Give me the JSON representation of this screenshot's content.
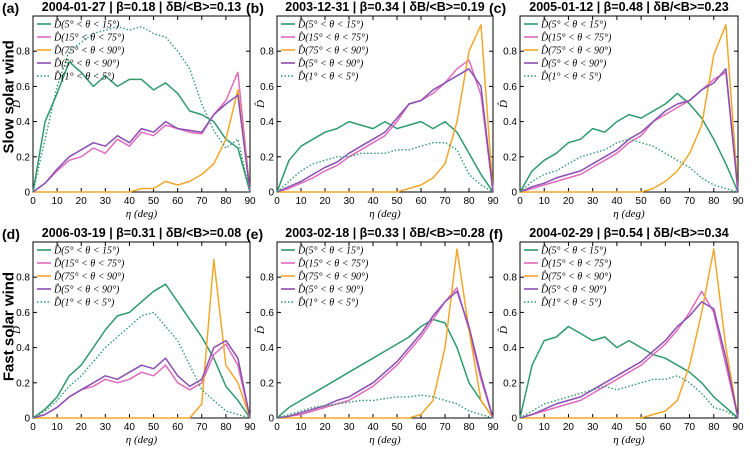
{
  "row_labels": [
    "Slow solar wind",
    "Fast solar wind"
  ],
  "colors": {
    "green": "#2e9a6e",
    "pink": "#e06bbd",
    "orange": "#f2a72a",
    "purple": "#8a4fb3",
    "green_dotted": "#2e9a6e"
  },
  "chart_data": [
    {
      "panel": "(a)",
      "type": "line",
      "title": "2004-01-27 | β=0.18 | δB/<B>=0.13",
      "xlabel": "η (deg)",
      "ylabel": "D̂",
      "xlim": [
        0,
        90
      ],
      "ylim": [
        0,
        1.0
      ],
      "xticks": [
        0,
        10,
        20,
        30,
        40,
        50,
        60,
        70,
        80,
        90
      ],
      "yticks": [
        0,
        0.2,
        0.4,
        0.6,
        0.8
      ],
      "x": [
        0,
        5,
        10,
        15,
        20,
        25,
        30,
        35,
        40,
        45,
        50,
        55,
        60,
        65,
        70,
        75,
        80,
        85,
        90
      ],
      "series": [
        {
          "name": "D̂(5° < θ < 15°)",
          "style": "solid",
          "color": "green",
          "values": [
            0.0,
            0.4,
            0.56,
            0.74,
            0.68,
            0.6,
            0.66,
            0.6,
            0.64,
            0.64,
            0.58,
            0.62,
            0.56,
            0.46,
            0.44,
            0.4,
            0.3,
            0.25,
            0.0
          ]
        },
        {
          "name": "D̂(15° < θ < 75°)",
          "style": "solid",
          "color": "pink",
          "values": [
            0.0,
            0.05,
            0.12,
            0.18,
            0.2,
            0.25,
            0.22,
            0.3,
            0.26,
            0.34,
            0.32,
            0.38,
            0.36,
            0.34,
            0.33,
            0.44,
            0.52,
            0.68,
            0.0
          ]
        },
        {
          "name": "D̂(75° < θ < 90°)",
          "style": "solid",
          "color": "orange",
          "values": [
            0.0,
            0.0,
            0.0,
            0.0,
            0.0,
            0.0,
            0.0,
            0.0,
            0.0,
            0.02,
            0.02,
            0.06,
            0.04,
            0.06,
            0.1,
            0.16,
            0.3,
            0.58,
            0.0
          ]
        },
        {
          "name": "D̂(5° < θ < 90°)",
          "style": "solid",
          "color": "purple",
          "values": [
            0.0,
            0.05,
            0.13,
            0.2,
            0.24,
            0.28,
            0.26,
            0.32,
            0.28,
            0.36,
            0.34,
            0.4,
            0.36,
            0.35,
            0.34,
            0.44,
            0.5,
            0.55,
            0.0
          ]
        },
        {
          "name": "D̂(1° < θ < 5°)",
          "style": "dotted",
          "color": "green_dotted",
          "values": [
            0.0,
            0.3,
            0.6,
            0.8,
            0.85,
            0.9,
            0.92,
            0.94,
            0.92,
            0.94,
            0.9,
            0.88,
            0.8,
            0.7,
            0.5,
            0.35,
            0.25,
            0.3,
            0.0
          ]
        }
      ]
    },
    {
      "panel": "(b)",
      "type": "line",
      "title": "2003-12-31 | β=0.34 | δB/<B>=0.19",
      "xlabel": "η (deg)",
      "ylabel": "D̂",
      "xlim": [
        0,
        90
      ],
      "ylim": [
        0,
        1.0
      ],
      "xticks": [
        0,
        10,
        20,
        30,
        40,
        50,
        60,
        70,
        80,
        90
      ],
      "yticks": [
        0,
        0.2,
        0.4,
        0.6,
        0.8
      ],
      "x": [
        0,
        5,
        10,
        15,
        20,
        25,
        30,
        35,
        40,
        45,
        50,
        55,
        60,
        65,
        70,
        75,
        80,
        85,
        90
      ],
      "series": [
        {
          "name": "D̂(5° < θ < 15°)",
          "style": "solid",
          "color": "green",
          "values": [
            0.0,
            0.18,
            0.26,
            0.3,
            0.34,
            0.36,
            0.4,
            0.38,
            0.36,
            0.4,
            0.36,
            0.38,
            0.4,
            0.36,
            0.4,
            0.34,
            0.22,
            0.1,
            0.0
          ]
        },
        {
          "name": "D̂(15° < θ < 75°)",
          "style": "solid",
          "color": "pink",
          "values": [
            0.0,
            0.02,
            0.05,
            0.08,
            0.12,
            0.15,
            0.2,
            0.24,
            0.28,
            0.32,
            0.4,
            0.5,
            0.52,
            0.56,
            0.62,
            0.7,
            0.75,
            0.55,
            0.0
          ]
        },
        {
          "name": "D̂(75° < θ < 90°)",
          "style": "solid",
          "color": "orange",
          "values": [
            0.0,
            0.0,
            0.0,
            0.0,
            0.0,
            0.0,
            0.0,
            0.0,
            0.0,
            0.0,
            0.0,
            0.02,
            0.04,
            0.08,
            0.16,
            0.4,
            0.8,
            0.95,
            0.0
          ]
        },
        {
          "name": "D̂(5° < θ < 90°)",
          "style": "solid",
          "color": "purple",
          "values": [
            0.0,
            0.03,
            0.06,
            0.1,
            0.14,
            0.17,
            0.22,
            0.26,
            0.3,
            0.34,
            0.42,
            0.5,
            0.52,
            0.58,
            0.62,
            0.66,
            0.7,
            0.6,
            0.0
          ]
        },
        {
          "name": "D̂(1° < θ < 5°)",
          "style": "dotted",
          "color": "green_dotted",
          "values": [
            0.0,
            0.06,
            0.12,
            0.16,
            0.18,
            0.2,
            0.2,
            0.22,
            0.22,
            0.22,
            0.24,
            0.24,
            0.26,
            0.28,
            0.28,
            0.24,
            0.1,
            0.04,
            0.0
          ]
        }
      ]
    },
    {
      "panel": "(c)",
      "type": "line",
      "title": "2005-01-12 | β=0.48 | δB/<B>=0.23",
      "xlabel": "η (deg)",
      "ylabel": "D̂",
      "xlim": [
        0,
        90
      ],
      "ylim": [
        0,
        1.0
      ],
      "xticks": [
        0,
        10,
        20,
        30,
        40,
        50,
        60,
        70,
        80,
        90
      ],
      "yticks": [
        0,
        0.2,
        0.4,
        0.6,
        0.8
      ],
      "x": [
        0,
        5,
        10,
        15,
        20,
        25,
        30,
        35,
        40,
        45,
        50,
        55,
        60,
        65,
        70,
        75,
        80,
        85,
        90
      ],
      "series": [
        {
          "name": "D̂(5° < θ < 15°)",
          "style": "solid",
          "color": "green",
          "values": [
            0.0,
            0.12,
            0.18,
            0.22,
            0.28,
            0.3,
            0.36,
            0.34,
            0.4,
            0.44,
            0.42,
            0.46,
            0.5,
            0.56,
            0.5,
            0.42,
            0.3,
            0.16,
            0.0
          ]
        },
        {
          "name": "D̂(15° < θ < 75°)",
          "style": "solid",
          "color": "pink",
          "values": [
            0.0,
            0.02,
            0.04,
            0.06,
            0.08,
            0.1,
            0.14,
            0.18,
            0.22,
            0.28,
            0.32,
            0.4,
            0.44,
            0.48,
            0.52,
            0.58,
            0.64,
            0.68,
            0.0
          ]
        },
        {
          "name": "D̂(75° < θ < 90°)",
          "style": "solid",
          "color": "orange",
          "values": [
            0.0,
            0.0,
            0.0,
            0.0,
            0.0,
            0.0,
            0.0,
            0.0,
            0.0,
            0.0,
            0.0,
            0.02,
            0.06,
            0.12,
            0.22,
            0.38,
            0.78,
            0.95,
            0.0
          ]
        },
        {
          "name": "D̂(5° < θ < 90°)",
          "style": "solid",
          "color": "purple",
          "values": [
            0.0,
            0.03,
            0.05,
            0.08,
            0.1,
            0.12,
            0.16,
            0.2,
            0.24,
            0.3,
            0.34,
            0.4,
            0.46,
            0.5,
            0.52,
            0.58,
            0.62,
            0.7,
            0.0
          ]
        },
        {
          "name": "D̂(1° < θ < 5°)",
          "style": "dotted",
          "color": "green_dotted",
          "values": [
            0.0,
            0.06,
            0.1,
            0.12,
            0.16,
            0.2,
            0.22,
            0.24,
            0.28,
            0.3,
            0.28,
            0.26,
            0.22,
            0.18,
            0.14,
            0.08,
            0.04,
            0.02,
            0.0
          ]
        }
      ]
    },
    {
      "panel": "(d)",
      "type": "line",
      "title": "2006-03-19 | β=0.31 | δB/<B>=0.08",
      "xlabel": "η (deg)",
      "ylabel": "D̂",
      "xlim": [
        0,
        90
      ],
      "ylim": [
        0,
        1.0
      ],
      "xticks": [
        0,
        10,
        20,
        30,
        40,
        50,
        60,
        70,
        80,
        90
      ],
      "yticks": [
        0,
        0.2,
        0.4,
        0.6,
        0.8
      ],
      "x": [
        0,
        5,
        10,
        15,
        20,
        25,
        30,
        35,
        40,
        45,
        50,
        55,
        60,
        65,
        70,
        75,
        80,
        85,
        90
      ],
      "series": [
        {
          "name": "D̂(5° < θ < 15°)",
          "style": "solid",
          "color": "green",
          "values": [
            0.0,
            0.05,
            0.12,
            0.24,
            0.3,
            0.4,
            0.5,
            0.58,
            0.6,
            0.66,
            0.72,
            0.76,
            0.66,
            0.56,
            0.46,
            0.34,
            0.18,
            0.1,
            0.0
          ]
        },
        {
          "name": "D̂(15° < θ < 75°)",
          "style": "solid",
          "color": "pink",
          "values": [
            0.0,
            0.02,
            0.06,
            0.12,
            0.16,
            0.18,
            0.22,
            0.2,
            0.22,
            0.26,
            0.24,
            0.3,
            0.2,
            0.16,
            0.2,
            0.36,
            0.42,
            0.3,
            0.0
          ]
        },
        {
          "name": "D̂(75° < θ < 90°)",
          "style": "solid",
          "color": "orange",
          "values": [
            0.0,
            0.0,
            0.0,
            0.0,
            0.0,
            0.0,
            0.0,
            0.0,
            0.0,
            0.0,
            0.0,
            0.0,
            0.0,
            0.0,
            0.08,
            0.9,
            0.3,
            0.2,
            0.0
          ]
        },
        {
          "name": "D̂(5° < θ < 90°)",
          "style": "solid",
          "color": "purple",
          "values": [
            0.0,
            0.02,
            0.06,
            0.12,
            0.16,
            0.2,
            0.24,
            0.22,
            0.26,
            0.3,
            0.28,
            0.34,
            0.24,
            0.18,
            0.22,
            0.4,
            0.44,
            0.34,
            0.0
          ]
        },
        {
          "name": "D̂(1° < θ < 5°)",
          "style": "dotted",
          "color": "green_dotted",
          "values": [
            0.0,
            0.04,
            0.1,
            0.18,
            0.24,
            0.32,
            0.4,
            0.46,
            0.52,
            0.58,
            0.6,
            0.52,
            0.44,
            0.3,
            0.16,
            0.1,
            0.04,
            0.02,
            0.0
          ]
        }
      ]
    },
    {
      "panel": "(e)",
      "type": "line",
      "title": "2003-02-18 | β=0.33 | δB/<B>=0.28",
      "xlabel": "η (deg)",
      "ylabel": "D̂",
      "xlim": [
        0,
        90
      ],
      "ylim": [
        0,
        1.0
      ],
      "xticks": [
        0,
        10,
        20,
        30,
        40,
        50,
        60,
        70,
        80,
        90
      ],
      "yticks": [
        0,
        0.2,
        0.4,
        0.6,
        0.8
      ],
      "x": [
        0,
        5,
        10,
        15,
        20,
        25,
        30,
        35,
        40,
        45,
        50,
        55,
        60,
        65,
        70,
        75,
        80,
        85,
        90
      ],
      "series": [
        {
          "name": "D̂(5° < θ < 15°)",
          "style": "solid",
          "color": "green",
          "values": [
            0.0,
            0.06,
            0.1,
            0.14,
            0.18,
            0.22,
            0.26,
            0.3,
            0.34,
            0.38,
            0.42,
            0.46,
            0.52,
            0.56,
            0.54,
            0.4,
            0.2,
            0.1,
            0.0
          ]
        },
        {
          "name": "D̂(15° < θ < 75°)",
          "style": "solid",
          "color": "pink",
          "values": [
            0.0,
            0.01,
            0.02,
            0.04,
            0.06,
            0.08,
            0.1,
            0.14,
            0.18,
            0.24,
            0.3,
            0.38,
            0.46,
            0.56,
            0.66,
            0.74,
            0.5,
            0.22,
            0.0
          ]
        },
        {
          "name": "D̂(75° < θ < 90°)",
          "style": "solid",
          "color": "orange",
          "values": [
            0.0,
            0.0,
            0.0,
            0.0,
            0.0,
            0.0,
            0.0,
            0.0,
            0.0,
            0.0,
            0.0,
            0.0,
            0.02,
            0.1,
            0.4,
            0.96,
            0.5,
            0.1,
            0.0
          ]
        },
        {
          "name": "D̂(5° < θ < 90°)",
          "style": "solid",
          "color": "purple",
          "values": [
            0.0,
            0.01,
            0.03,
            0.05,
            0.07,
            0.1,
            0.12,
            0.16,
            0.2,
            0.26,
            0.32,
            0.4,
            0.48,
            0.58,
            0.66,
            0.72,
            0.52,
            0.24,
            0.0
          ]
        },
        {
          "name": "D̂(1° < θ < 5°)",
          "style": "dotted",
          "color": "green_dotted",
          "values": [
            0.0,
            0.02,
            0.04,
            0.06,
            0.07,
            0.08,
            0.09,
            0.1,
            0.1,
            0.11,
            0.12,
            0.12,
            0.13,
            0.12,
            0.1,
            0.08,
            0.04,
            0.02,
            0.0
          ]
        }
      ]
    },
    {
      "panel": "(f)",
      "type": "line",
      "title": "2004-02-29 | β=0.54 | δB/<B>=0.34",
      "xlabel": "η (deg)",
      "ylabel": "D̂",
      "xlim": [
        0,
        90
      ],
      "ylim": [
        0,
        1.0
      ],
      "xticks": [
        0,
        10,
        20,
        30,
        40,
        50,
        60,
        70,
        80,
        90
      ],
      "yticks": [
        0,
        0.2,
        0.4,
        0.6,
        0.8
      ],
      "x": [
        0,
        5,
        10,
        15,
        20,
        25,
        30,
        35,
        40,
        45,
        50,
        55,
        60,
        65,
        70,
        75,
        80,
        85,
        90
      ],
      "series": [
        {
          "name": "D̂(5° < θ < 15°)",
          "style": "solid",
          "color": "green",
          "values": [
            0.0,
            0.3,
            0.44,
            0.46,
            0.52,
            0.48,
            0.44,
            0.46,
            0.4,
            0.44,
            0.4,
            0.36,
            0.34,
            0.3,
            0.26,
            0.2,
            0.12,
            0.06,
            0.0
          ]
        },
        {
          "name": "D̂(15° < θ < 75°)",
          "style": "solid",
          "color": "pink",
          "values": [
            0.0,
            0.02,
            0.04,
            0.06,
            0.08,
            0.1,
            0.14,
            0.18,
            0.22,
            0.26,
            0.3,
            0.36,
            0.42,
            0.5,
            0.6,
            0.72,
            0.6,
            0.3,
            0.0
          ]
        },
        {
          "name": "D̂(75° < θ < 90°)",
          "style": "solid",
          "color": "orange",
          "values": [
            0.0,
            0.0,
            0.0,
            0.0,
            0.0,
            0.0,
            0.0,
            0.0,
            0.0,
            0.0,
            0.0,
            0.02,
            0.04,
            0.1,
            0.3,
            0.6,
            0.96,
            0.4,
            0.0
          ]
        },
        {
          "name": "D̂(5° < θ < 90°)",
          "style": "solid",
          "color": "purple",
          "values": [
            0.0,
            0.02,
            0.05,
            0.08,
            0.1,
            0.12,
            0.16,
            0.2,
            0.24,
            0.28,
            0.32,
            0.38,
            0.44,
            0.52,
            0.58,
            0.66,
            0.62,
            0.34,
            0.0
          ]
        },
        {
          "name": "D̂(1° < θ < 5°)",
          "style": "dotted",
          "color": "green_dotted",
          "values": [
            0.0,
            0.04,
            0.08,
            0.1,
            0.12,
            0.14,
            0.16,
            0.18,
            0.16,
            0.18,
            0.2,
            0.22,
            0.22,
            0.24,
            0.2,
            0.14,
            0.06,
            0.04,
            0.0
          ]
        }
      ]
    }
  ]
}
